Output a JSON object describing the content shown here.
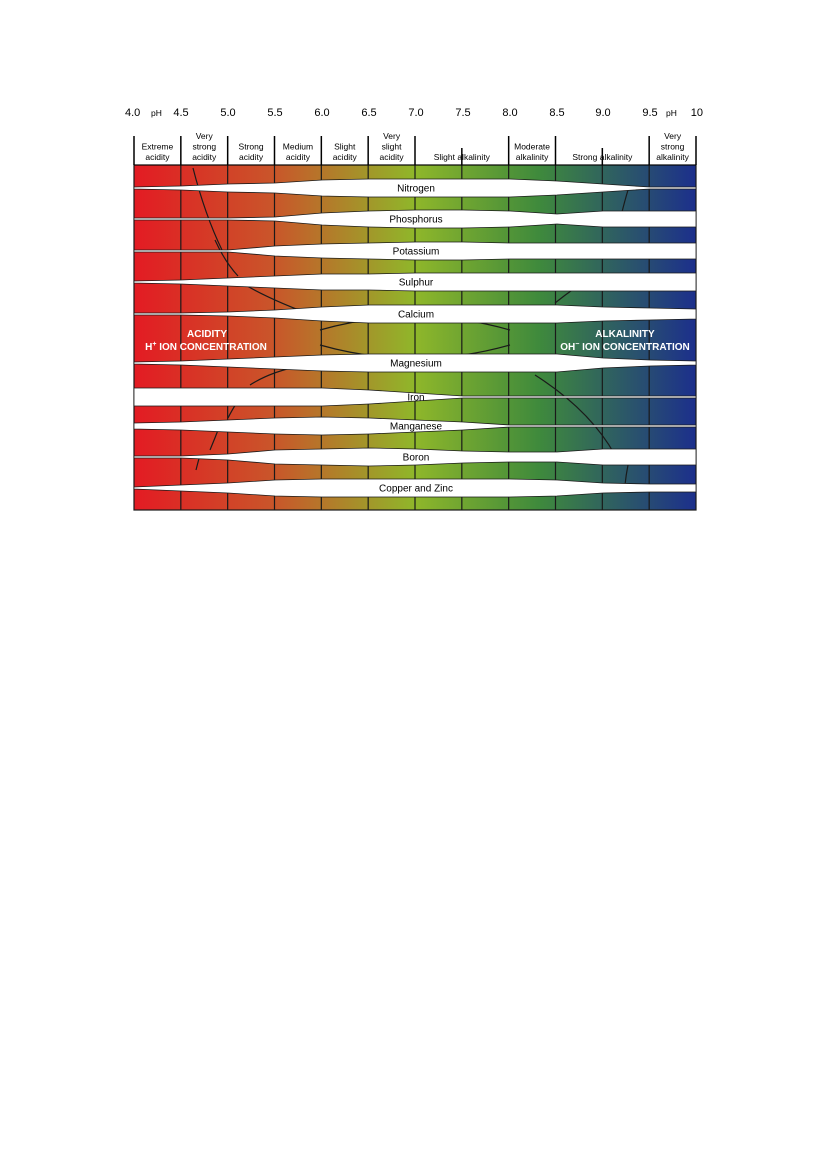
{
  "chart_data": {
    "type": "diagram",
    "ph_ticks": [
      "4.0",
      "4.5",
      "5.0",
      "5.5",
      "6.0",
      "6.5",
      "7.0",
      "7.5",
      "8.0",
      "8.5",
      "9.0",
      "9.5",
      "10"
    ],
    "ph_unit_left": "pH",
    "ph_unit_right": "pH",
    "zones": [
      {
        "lines": [
          "Extreme",
          "acidity"
        ],
        "from": 4.0,
        "to": 4.5
      },
      {
        "lines": [
          "Very",
          "strong",
          "acidity"
        ],
        "from": 4.5,
        "to": 5.0
      },
      {
        "lines": [
          "Strong",
          "acidity"
        ],
        "from": 5.0,
        "to": 5.5
      },
      {
        "lines": [
          "Medium",
          "acidity"
        ],
        "from": 5.5,
        "to": 6.0
      },
      {
        "lines": [
          "Slight",
          "acidity"
        ],
        "from": 6.0,
        "to": 6.5
      },
      {
        "lines": [
          "Very",
          "slight",
          "acidity"
        ],
        "from": 6.5,
        "to": 7.0
      },
      {
        "lines": [
          "Slight alkalinity"
        ],
        "from": 7.0,
        "to": 8.0
      },
      {
        "lines": [
          "Moderate",
          "alkalinity"
        ],
        "from": 8.0,
        "to": 8.5
      },
      {
        "lines": [
          "Strong alkalinity"
        ],
        "from": 8.5,
        "to": 9.5
      },
      {
        "lines": [
          "Very",
          "strong",
          "alkalinity"
        ],
        "from": 9.5,
        "to": 10.0
      }
    ],
    "nutrients": [
      "Nitrogen",
      "Phosphorus",
      "Potassium",
      "Sulphur",
      "Calcium",
      "Magnesium",
      "Iron",
      "Manganese",
      "Boron",
      "Copper and Zinc"
    ],
    "acidity_label": {
      "line1": "ACIDITY",
      "line2_prefix": "H",
      "line2_sup": "+",
      "line2_rest": " ION CONCENTRATION"
    },
    "alkalinity_label": {
      "line1": "ALKALINITY",
      "line2_prefix": "OH",
      "line2_sup": "−",
      "line2_rest": " ION CONCENTRATION"
    },
    "colors": {
      "acid": "#e31b23",
      "mid_acid": "#c7611f",
      "neutral": "#7fbf2a",
      "mid_alk": "#3e7d4e",
      "alk": "#1f3a8f"
    }
  }
}
